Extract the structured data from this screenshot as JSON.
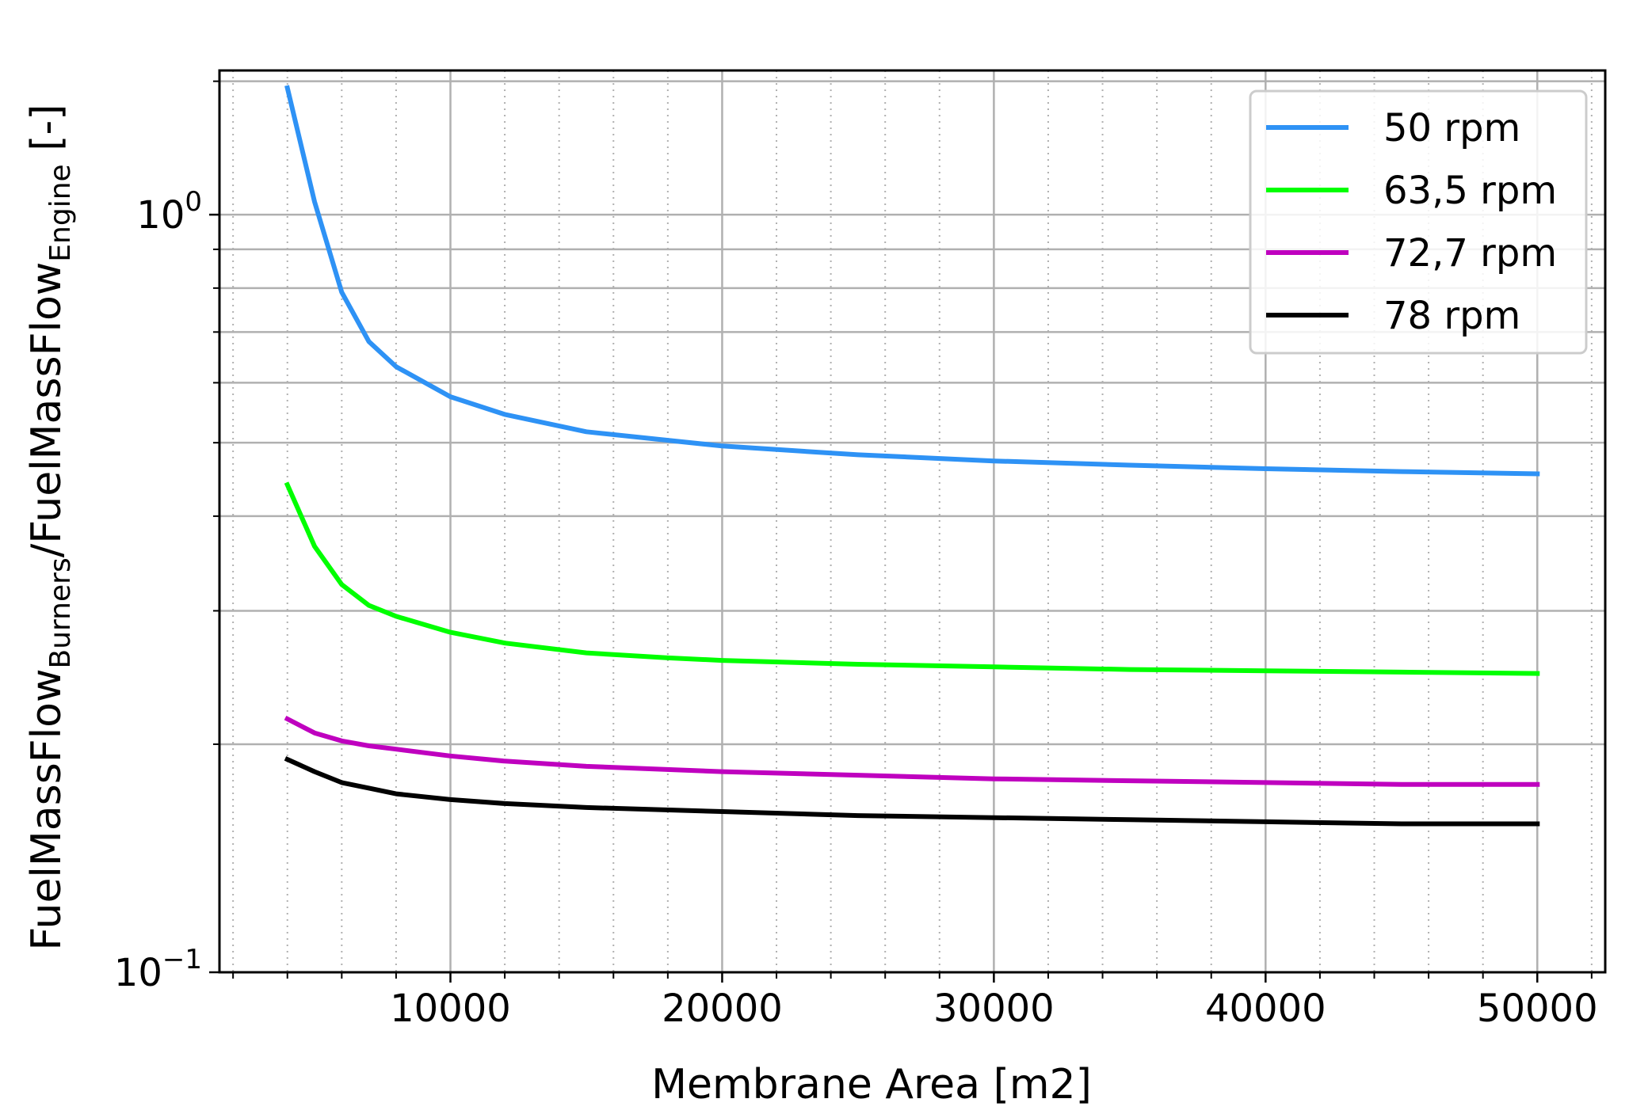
{
  "chart_data": {
    "type": "line",
    "xlabel": "Membrane Area [m2]",
    "ylabel": {
      "main": "FuelMassFlow",
      "sub1": "Burners",
      "mid": "/FuelMassFlow",
      "sub2": "Engine",
      "unit": " [-]"
    },
    "x_scale": "linear",
    "y_scale": "log",
    "xlim": [
      1500,
      52500
    ],
    "ylim": [
      0.1,
      1.55
    ],
    "x_ticks": [
      10000,
      20000,
      30000,
      40000,
      50000
    ],
    "x_tick_labels": [
      "10000",
      "20000",
      "30000",
      "40000",
      "50000"
    ],
    "y_ticks": [
      {
        "base": "10",
        "exp": "0",
        "value": 1.0
      },
      {
        "base": "10",
        "exp": "−1",
        "value": 0.1
      }
    ],
    "grid": "major and minor",
    "legend_position": "top-right",
    "series": [
      {
        "name": "50 rpm",
        "color": "#2e92f5",
        "x": [
          4000,
          5000,
          6000,
          7000,
          8000,
          10000,
          12000,
          15000,
          20000,
          25000,
          30000,
          35000,
          40000,
          45000,
          50000
        ],
        "y": [
          1.47,
          1.04,
          0.79,
          0.68,
          0.63,
          0.575,
          0.545,
          0.517,
          0.495,
          0.482,
          0.473,
          0.467,
          0.462,
          0.458,
          0.455
        ]
      },
      {
        "name": "63,5 rpm",
        "color": "#00ff00",
        "x": [
          4000,
          5000,
          6000,
          7000,
          8000,
          10000,
          12000,
          15000,
          18000,
          20000,
          25000,
          30000,
          35000,
          40000,
          45000,
          50000
        ],
        "y": [
          0.44,
          0.365,
          0.325,
          0.305,
          0.295,
          0.281,
          0.272,
          0.264,
          0.26,
          0.258,
          0.255,
          0.253,
          0.251,
          0.25,
          0.249,
          0.248
        ]
      },
      {
        "name": "72,7 rpm",
        "color": "#bf00bf",
        "x": [
          4000,
          5000,
          6000,
          7000,
          8000,
          10000,
          12000,
          15000,
          20000,
          25000,
          30000,
          35000,
          40000,
          45000,
          50000
        ],
        "y": [
          0.216,
          0.207,
          0.202,
          0.199,
          0.197,
          0.193,
          0.19,
          0.187,
          0.184,
          0.182,
          0.18,
          0.179,
          0.178,
          0.177,
          0.177
        ]
      },
      {
        "name": "78 rpm",
        "color": "#000000",
        "x": [
          4000,
          5000,
          6000,
          7000,
          8000,
          10000,
          12000,
          15000,
          20000,
          25000,
          30000,
          35000,
          40000,
          45000,
          50000
        ],
        "y": [
          0.191,
          0.184,
          0.178,
          0.175,
          0.172,
          0.169,
          0.167,
          0.165,
          0.163,
          0.161,
          0.16,
          0.159,
          0.158,
          0.157,
          0.157
        ]
      }
    ]
  }
}
